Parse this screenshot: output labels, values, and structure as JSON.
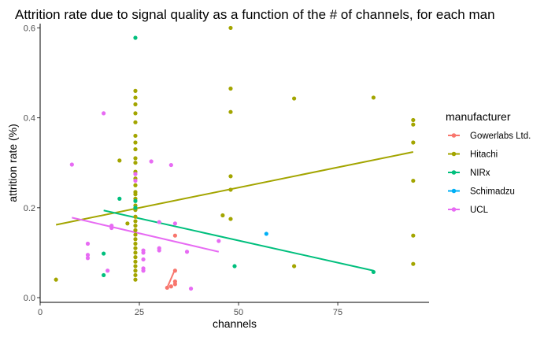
{
  "chart_data": {
    "type": "scatter",
    "title": "Attrition rate due to signal quality as a function of the # of channels, for each man",
    "xlabel": "channels",
    "ylabel": "attrition rate (%)",
    "xlim": [
      0,
      98
    ],
    "ylim": [
      0,
      0.62
    ],
    "x_ticks": [
      0,
      25,
      50,
      75
    ],
    "y_ticks": [
      0.0,
      0.2,
      0.4,
      0.6
    ],
    "x_tick_labels": [
      "0",
      "25",
      "50",
      "75"
    ],
    "y_tick_labels": [
      "0.0",
      "0.2",
      "0.4",
      "0.6"
    ],
    "grid": false,
    "legend": {
      "title": "manufacturer",
      "position": "right"
    },
    "series": [
      {
        "name": "Gowerlabs Ltd.",
        "color": "#F8766D",
        "points": [
          [
            32,
            0.022
          ],
          [
            33,
            0.025
          ],
          [
            34,
            0.03
          ],
          [
            34,
            0.036
          ],
          [
            34,
            0.06
          ],
          [
            34,
            0.138
          ]
        ],
        "fit": [
          [
            32,
            0.022
          ],
          [
            34,
            0.063
          ]
        ]
      },
      {
        "name": "Hitachi",
        "color": "#A3A500",
        "points": [
          [
            4,
            0.04
          ],
          [
            20,
            0.305
          ],
          [
            22,
            0.165
          ],
          [
            24,
            0.46
          ],
          [
            24,
            0.445
          ],
          [
            24,
            0.43
          ],
          [
            24,
            0.41
          ],
          [
            24,
            0.39
          ],
          [
            24,
            0.36
          ],
          [
            24,
            0.345
          ],
          [
            24,
            0.33
          ],
          [
            24,
            0.31
          ],
          [
            24,
            0.3
          ],
          [
            24,
            0.28
          ],
          [
            24,
            0.265
          ],
          [
            24,
            0.25
          ],
          [
            24,
            0.235
          ],
          [
            24,
            0.23
          ],
          [
            24,
            0.22
          ],
          [
            24,
            0.205
          ],
          [
            24,
            0.195
          ],
          [
            24,
            0.18
          ],
          [
            24,
            0.17
          ],
          [
            24,
            0.16
          ],
          [
            24,
            0.15
          ],
          [
            24,
            0.14
          ],
          [
            24,
            0.13
          ],
          [
            24,
            0.12
          ],
          [
            24,
            0.11
          ],
          [
            24,
            0.1
          ],
          [
            24,
            0.09
          ],
          [
            24,
            0.08
          ],
          [
            24,
            0.07
          ],
          [
            24,
            0.06
          ],
          [
            24,
            0.05
          ],
          [
            24,
            0.04
          ],
          [
            46,
            0.183
          ],
          [
            48,
            0.6
          ],
          [
            48,
            0.465
          ],
          [
            48,
            0.413
          ],
          [
            48,
            0.27
          ],
          [
            48,
            0.24
          ],
          [
            48,
            0.175
          ],
          [
            64,
            0.443
          ],
          [
            64,
            0.07
          ],
          [
            84,
            0.445
          ],
          [
            94,
            0.395
          ],
          [
            94,
            0.385
          ],
          [
            94,
            0.345
          ],
          [
            94,
            0.26
          ],
          [
            94,
            0.138
          ],
          [
            94,
            0.075
          ]
        ],
        "fit": [
          [
            4,
            0.162
          ],
          [
            94,
            0.324
          ]
        ]
      },
      {
        "name": "NIRx",
        "color": "#00BF7D",
        "points": [
          [
            16,
            0.098
          ],
          [
            16,
            0.05
          ],
          [
            20,
            0.22
          ],
          [
            24,
            0.578
          ],
          [
            24,
            0.215
          ],
          [
            24,
            0.2
          ],
          [
            49,
            0.07
          ],
          [
            84,
            0.057
          ]
        ],
        "fit": [
          [
            16,
            0.194
          ],
          [
            84,
            0.06
          ]
        ]
      },
      {
        "name": "Schimadzu",
        "color": "#00B0F6",
        "points": [
          [
            57,
            0.142
          ]
        ],
        "fit": []
      },
      {
        "name": "UCL",
        "color": "#E76BF3",
        "points": [
          [
            8,
            0.296
          ],
          [
            12,
            0.12
          ],
          [
            12,
            0.095
          ],
          [
            12,
            0.088
          ],
          [
            16,
            0.41
          ],
          [
            17,
            0.06
          ],
          [
            18,
            0.16
          ],
          [
            18,
            0.155
          ],
          [
            24,
            0.275
          ],
          [
            24,
            0.26
          ],
          [
            26,
            0.105
          ],
          [
            26,
            0.1
          ],
          [
            26,
            0.085
          ],
          [
            26,
            0.065
          ],
          [
            26,
            0.06
          ],
          [
            28,
            0.303
          ],
          [
            30,
            0.11
          ],
          [
            30,
            0.105
          ],
          [
            30,
            0.168
          ],
          [
            33,
            0.295
          ],
          [
            34,
            0.165
          ],
          [
            37,
            0.102
          ],
          [
            38,
            0.02
          ],
          [
            45,
            0.126
          ]
        ],
        "fit": [
          [
            8,
            0.178
          ],
          [
            45,
            0.102
          ]
        ]
      }
    ]
  }
}
